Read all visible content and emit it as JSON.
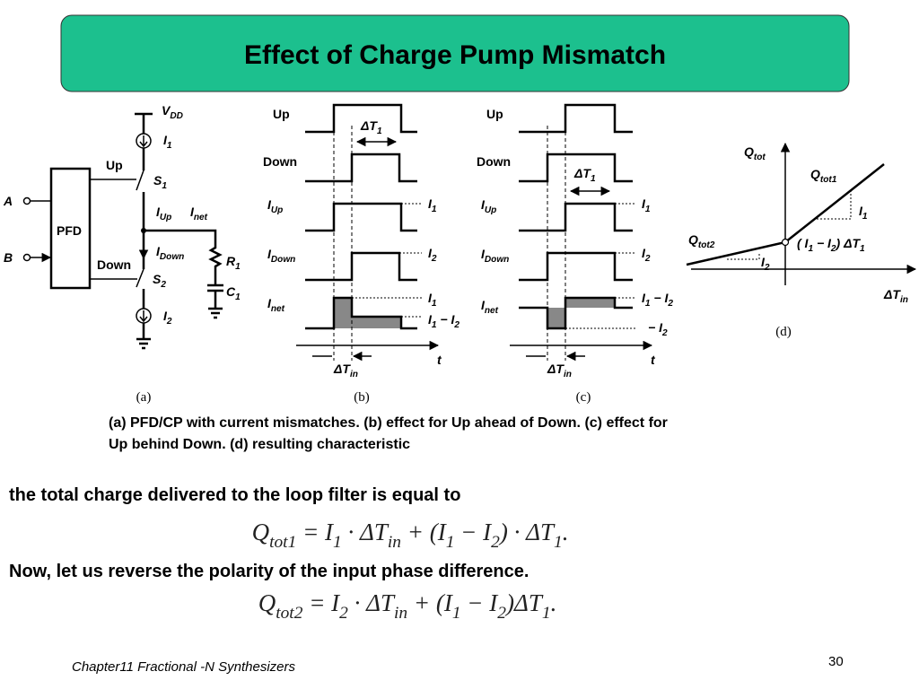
{
  "title": "Effect of Charge Pump Mismatch",
  "figure": {
    "a": {
      "vdd": [
        "V",
        {
          "sub": "DD"
        }
      ],
      "i1": [
        "I",
        {
          "sub": "1"
        }
      ],
      "up": [
        "Up"
      ],
      "s1": [
        "S",
        {
          "sub": "1"
        }
      ],
      "iup": [
        "I",
        {
          "sub": "Up"
        }
      ],
      "inet": [
        "I",
        {
          "sub": "net"
        }
      ],
      "a": [
        "A"
      ],
      "b": [
        "B"
      ],
      "pfd": [
        "PFD"
      ],
      "idown": [
        "I",
        {
          "sub": "Down"
        }
      ],
      "r1": [
        "R",
        {
          "sub": "1"
        }
      ],
      "c1": [
        "C",
        {
          "sub": "1"
        }
      ],
      "down": [
        "Down"
      ],
      "s2": [
        "S",
        {
          "sub": "2"
        }
      ],
      "i2": [
        "I",
        {
          "sub": "2"
        }
      ],
      "label": "(a)"
    },
    "b": {
      "up": [
        "Up"
      ],
      "down": [
        "Down"
      ],
      "dt1": [
        "ΔT",
        {
          "sub": "1"
        }
      ],
      "iup": [
        "I",
        {
          "sub": "Up"
        }
      ],
      "idown": [
        "I",
        {
          "sub": "Down"
        }
      ],
      "inet": [
        "I",
        {
          "sub": "net"
        }
      ],
      "i1": [
        "I",
        {
          "sub": "1"
        }
      ],
      "i2": [
        "I",
        {
          "sub": "2"
        }
      ],
      "net_i1": [
        "I",
        {
          "sub": "1"
        }
      ],
      "net_i1mi2": [
        "I",
        {
          "sub": "1"
        },
        " − I",
        {
          "sub": "2"
        }
      ],
      "t": [
        "t"
      ],
      "dtin": [
        "ΔT",
        {
          "sub": "in"
        }
      ],
      "label": "(b)"
    },
    "c": {
      "up": [
        "Up"
      ],
      "down": [
        "Down"
      ],
      "dt1": [
        "ΔT",
        {
          "sub": "1"
        }
      ],
      "iup": [
        "I",
        {
          "sub": "Up"
        }
      ],
      "idown": [
        "I",
        {
          "sub": "Down"
        }
      ],
      "inet": [
        "I",
        {
          "sub": "net"
        }
      ],
      "i1": [
        "I",
        {
          "sub": "1"
        }
      ],
      "i2": [
        "I",
        {
          "sub": "2"
        }
      ],
      "net_i1mi2": [
        "I",
        {
          "sub": "1"
        },
        " − I",
        {
          "sub": "2"
        }
      ],
      "net_mi2": [
        "− I",
        {
          "sub": "2"
        }
      ],
      "t": [
        "t"
      ],
      "dtin": [
        "ΔT",
        {
          "sub": "in"
        }
      ],
      "label": "(c)"
    },
    "d": {
      "qtot": [
        "Q",
        {
          "sub": "tot"
        }
      ],
      "qtot1": [
        "Q",
        {
          "sub": "tot1"
        }
      ],
      "i1": [
        "I",
        {
          "sub": "1"
        }
      ],
      "qtot2": [
        "Q",
        {
          "sub": "tot2"
        }
      ],
      "i2": [
        "I",
        {
          "sub": "2"
        }
      ],
      "offset": [
        "( I",
        {
          "sub": "1"
        },
        " − I",
        {
          "sub": "2"
        },
        ") ΔT",
        {
          "sub": "1"
        }
      ],
      "dtin": [
        "ΔT",
        {
          "sub": "in"
        }
      ],
      "label": "(d)"
    }
  },
  "caption": [
    "(a) PFD/CP with current mismatches. (b) effect for Up ahead of Down. (c) effect for",
    "Up behind Down. (d) resulting characteristic"
  ],
  "body": [
    "the total charge delivered to the loop filter is equal to",
    "Now, let us reverse the polarity of the input phase difference."
  ],
  "equations": [
    [
      "Q",
      {
        "sub": "tot1"
      },
      " = I",
      {
        "sub": "1"
      },
      " · ΔT",
      {
        "sub": "in"
      },
      " + (I",
      {
        "sub": "1"
      },
      " − I",
      {
        "sub": "2"
      },
      ") · ΔT",
      {
        "sub": "1"
      },
      "."
    ],
    [
      "Q",
      {
        "sub": "tot2"
      },
      " = I",
      {
        "sub": "2"
      },
      " · ΔT",
      {
        "sub": "in"
      },
      " + (I",
      {
        "sub": "1"
      },
      " − I",
      {
        "sub": "2"
      },
      ")ΔT",
      {
        "sub": "1"
      },
      "."
    ]
  ],
  "footer": {
    "left": "Chapter11 Fractional -N Synthesizers",
    "page": "30"
  }
}
